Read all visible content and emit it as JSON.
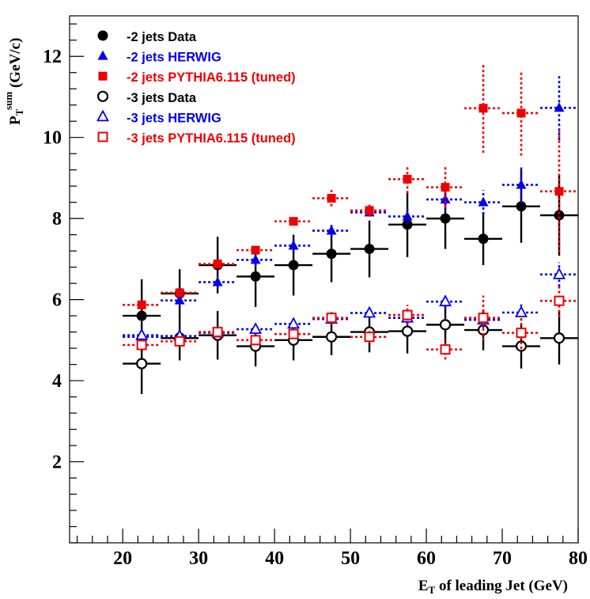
{
  "chart_data": {
    "type": "scatter",
    "xlabel": "E",
    "xlabel_sub": "T",
    "xlabel_rest": " of leading Jet (GeV)",
    "ylabel": "P",
    "ylabel_sub": "T",
    "ylabel_sup": "sum",
    "ylabel_rest": " (GeV/c)",
    "xlim": [
      13,
      80
    ],
    "ylim": [
      0,
      13
    ],
    "x_ticks": [
      20,
      30,
      40,
      50,
      60,
      70,
      80
    ],
    "y_ticks": [
      2,
      4,
      6,
      8,
      10,
      12
    ],
    "legend_position": "top-left",
    "series": [
      {
        "name": "-2 jets Data",
        "color": "#000000",
        "marker": "circle-filled",
        "line": "solid",
        "x": [
          22.5,
          27.5,
          32.5,
          37.5,
          42.5,
          47.5,
          52.5,
          57.5,
          62.5,
          67.5,
          72.5,
          77.5
        ],
        "y": [
          5.6,
          6.15,
          6.85,
          6.57,
          6.85,
          7.13,
          7.25,
          7.85,
          8.0,
          7.5,
          8.3,
          8.08
        ],
        "yerr": [
          0.9,
          0.6,
          0.7,
          0.75,
          0.75,
          0.7,
          0.7,
          0.8,
          0.75,
          0.65,
          0.9,
          1.0
        ]
      },
      {
        "name": "-2 jets HERWIG",
        "color": "#0000ee",
        "marker": "triangle-filled",
        "line": "dotted",
        "x": [
          22.5,
          27.5,
          32.5,
          37.5,
          42.5,
          47.5,
          52.5,
          57.5,
          62.5,
          67.5,
          72.5,
          77.5
        ],
        "y": [
          5.08,
          5.98,
          6.43,
          6.98,
          7.33,
          7.7,
          8.15,
          8.05,
          8.47,
          8.4,
          8.83,
          10.73
        ],
        "yerr": [
          0.1,
          0.1,
          0.1,
          0.15,
          0.15,
          0.15,
          0.1,
          0.2,
          0.25,
          0.3,
          0.45,
          0.8
        ]
      },
      {
        "name": "-2 jets PYTHIA6.115 (tuned)",
        "color": "#ee0000",
        "marker": "square-filled",
        "line": "dotted",
        "x": [
          22.5,
          27.5,
          32.5,
          37.5,
          42.5,
          47.5,
          52.5,
          57.5,
          62.5,
          67.5,
          72.5,
          77.5
        ],
        "y": [
          5.87,
          6.17,
          6.88,
          7.22,
          7.93,
          8.5,
          8.2,
          8.97,
          8.77,
          10.72,
          10.6,
          8.67
        ],
        "yerr": [
          0.1,
          0.1,
          0.1,
          0.1,
          0.1,
          0.2,
          0.15,
          0.35,
          0.5,
          1.1,
          1.05,
          1.5
        ]
      },
      {
        "name": "-3 jets Data",
        "color": "#000000",
        "marker": "circle-open",
        "line": "solid",
        "x": [
          22.5,
          27.5,
          32.5,
          37.5,
          42.5,
          47.5,
          52.5,
          57.5,
          62.5,
          67.5,
          72.5,
          77.5
        ],
        "y": [
          4.42,
          5.05,
          5.12,
          4.85,
          5.0,
          5.08,
          5.2,
          5.22,
          5.38,
          5.25,
          4.85,
          5.05
        ],
        "yerr": [
          0.75,
          0.55,
          0.6,
          0.5,
          0.5,
          0.45,
          0.5,
          0.55,
          0.6,
          0.5,
          0.55,
          0.65
        ]
      },
      {
        "name": "-3 jets HERWIG",
        "color": "#0000ee",
        "marker": "triangle-open",
        "line": "dotted",
        "x": [
          22.5,
          27.5,
          32.5,
          37.5,
          42.5,
          47.5,
          52.5,
          57.5,
          62.5,
          67.5,
          72.5,
          77.5
        ],
        "y": [
          5.12,
          5.1,
          5.18,
          5.27,
          5.4,
          5.52,
          5.67,
          5.55,
          5.95,
          5.5,
          5.68,
          6.62
        ],
        "yerr": [
          0.08,
          0.08,
          0.08,
          0.08,
          0.1,
          0.1,
          0.12,
          0.15,
          0.15,
          0.2,
          0.2,
          0.3
        ]
      },
      {
        "name": "-3 jets PYTHIA6.115 (tuned)",
        "color": "#ee0000",
        "marker": "square-open",
        "line": "dotted",
        "x": [
          22.5,
          27.5,
          32.5,
          37.5,
          42.5,
          47.5,
          52.5,
          57.5,
          62.5,
          67.5,
          72.5,
          77.5
        ],
        "y": [
          4.88,
          4.97,
          5.2,
          5.0,
          5.15,
          5.55,
          5.08,
          5.62,
          4.77,
          5.55,
          5.18,
          5.97
        ],
        "yerr": [
          0.1,
          0.1,
          0.1,
          0.1,
          0.1,
          0.15,
          0.15,
          0.25,
          0.25,
          0.55,
          0.4,
          0.4
        ]
      }
    ]
  }
}
